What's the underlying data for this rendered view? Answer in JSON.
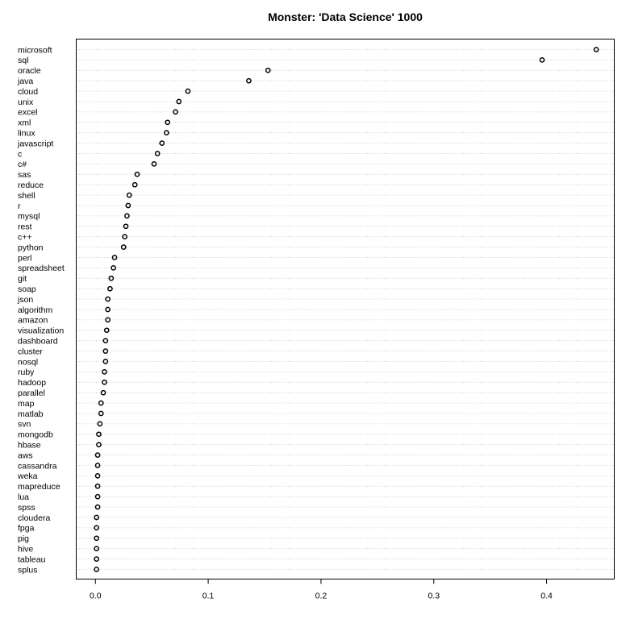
{
  "chart_data": {
    "type": "scatter",
    "title": "Monster: 'Data Science' 1000",
    "xlabel": "",
    "ylabel": "",
    "xlim": [
      -0.017,
      0.46
    ],
    "grid": true,
    "x_ticks": [
      0.0,
      0.1,
      0.2,
      0.3,
      0.4
    ],
    "x_tick_labels": [
      "0.0",
      "0.1",
      "0.2",
      "0.3",
      "0.4"
    ],
    "categories": [
      "microsoft",
      "sql",
      "oracle",
      "java",
      "cloud",
      "unix",
      "excel",
      "xml",
      "linux",
      "javascript",
      "c",
      "c#",
      "sas",
      "reduce",
      "shell",
      "r",
      "mysql",
      "rest",
      "c++",
      "python",
      "perl",
      "spreadsheet",
      "git",
      "soap",
      "json",
      "algorithm",
      "amazon",
      "visualization",
      "dashboard",
      "cluster",
      "nosql",
      "ruby",
      "hadoop",
      "parallel",
      "map",
      "matlab",
      "svn",
      "mongodb",
      "hbase",
      "aws",
      "cassandra",
      "weka",
      "mapreduce",
      "lua",
      "spss",
      "cloudera",
      "fpga",
      "pig",
      "hive",
      "tableau",
      "splus"
    ],
    "values": [
      0.444,
      0.396,
      0.153,
      0.136,
      0.082,
      0.074,
      0.071,
      0.064,
      0.063,
      0.059,
      0.055,
      0.052,
      0.037,
      0.035,
      0.03,
      0.029,
      0.028,
      0.027,
      0.026,
      0.025,
      0.017,
      0.016,
      0.014,
      0.013,
      0.011,
      0.011,
      0.011,
      0.01,
      0.009,
      0.009,
      0.009,
      0.008,
      0.008,
      0.007,
      0.005,
      0.005,
      0.004,
      0.003,
      0.003,
      0.002,
      0.002,
      0.002,
      0.002,
      0.002,
      0.002,
      0.001,
      0.001,
      0.001,
      0.001,
      0.001,
      0.001
    ]
  }
}
